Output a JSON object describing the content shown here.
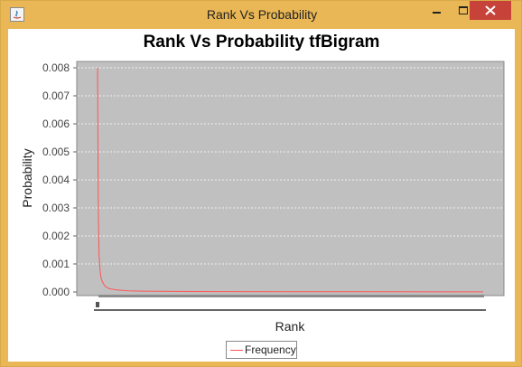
{
  "window": {
    "title": "Rank Vs Probability"
  },
  "chart_data": {
    "type": "line",
    "title": "Rank Vs Probability tfBigram",
    "xlabel": "Rank",
    "ylabel": "Probability",
    "ylim": [
      0,
      0.008
    ],
    "yticks": [
      "0.000",
      "0.001",
      "0.002",
      "0.003",
      "0.004",
      "0.005",
      "0.006",
      "0.007",
      "0.008"
    ],
    "grid": true,
    "legend_position": "bottom-center",
    "series": [
      {
        "name": "Frequency",
        "color": "#ff5555",
        "x": [
          0,
          0.002,
          0.004,
          0.007,
          0.01,
          0.015,
          0.02,
          0.03,
          0.05,
          0.08,
          0.12,
          0.2,
          0.3,
          0.5,
          0.7,
          1.0
        ],
        "y": [
          0.008,
          0.0028,
          0.0013,
          0.0007,
          0.00045,
          0.0003,
          0.0002,
          0.00012,
          7e-05,
          4e-05,
          3e-05,
          2e-05,
          1.2e-05,
          8e-06,
          5e-06,
          3e-06
        ]
      }
    ]
  },
  "colors": {
    "plot_background": "#c0c0c0",
    "titlebar": "#e9b755",
    "close_button": "#c7433a"
  }
}
